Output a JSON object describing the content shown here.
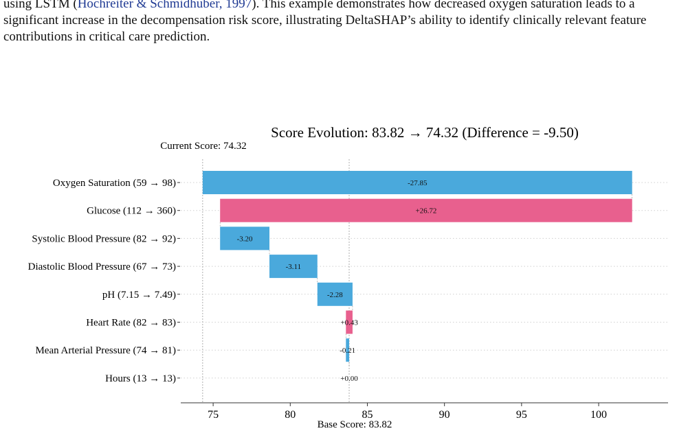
{
  "caption": {
    "line1_prefix": "using LSTM (",
    "line1_cite": "Hochreiter & Schmidhuber, 1997",
    "line1_suffix": "). This example demonstrates how decreased oxygen saturation leads to a",
    "line2": "significant increase in the decompensation risk score, illustrating DeltaSHAP’s ability to identify clinically relevant feature",
    "line3": "contributions in critical care prediction."
  },
  "chart_data": {
    "type": "bar",
    "subtype": "waterfall",
    "title": "Score Evolution: 83.82 → 74.32 (Difference = -9.50)",
    "current_score_label": "Current Score: 74.32",
    "base_score_label": "Base Score: 83.82",
    "base_score": 83.82,
    "current_score": 74.32,
    "xlim": [
      72.9,
      104.5
    ],
    "xticks": [
      75,
      80,
      85,
      90,
      95,
      100
    ],
    "grid": true,
    "colors": {
      "negative": "#4aa9dc",
      "positive": "#e8608e"
    },
    "categories": [
      "Oxygen Saturation (59 → 98)",
      "Glucose (112 → 360)",
      "Systolic Blood Pressure (82 → 92)",
      "Diastolic Blood Pressure (67 → 73)",
      "pH (7.15 → 7.49)",
      "Heart Rate (82 → 83)",
      "Mean Arterial Pressure (74 → 81)",
      "Hours (13 → 13)"
    ],
    "values": [
      -27.85,
      26.72,
      -3.2,
      -3.11,
      -2.28,
      0.43,
      -0.21,
      0.0
    ],
    "value_labels": [
      "-27.85",
      "+26.72",
      "-3.20",
      "-3.11",
      "-2.28",
      "+0.43",
      "-0.21",
      "+0.00"
    ]
  }
}
